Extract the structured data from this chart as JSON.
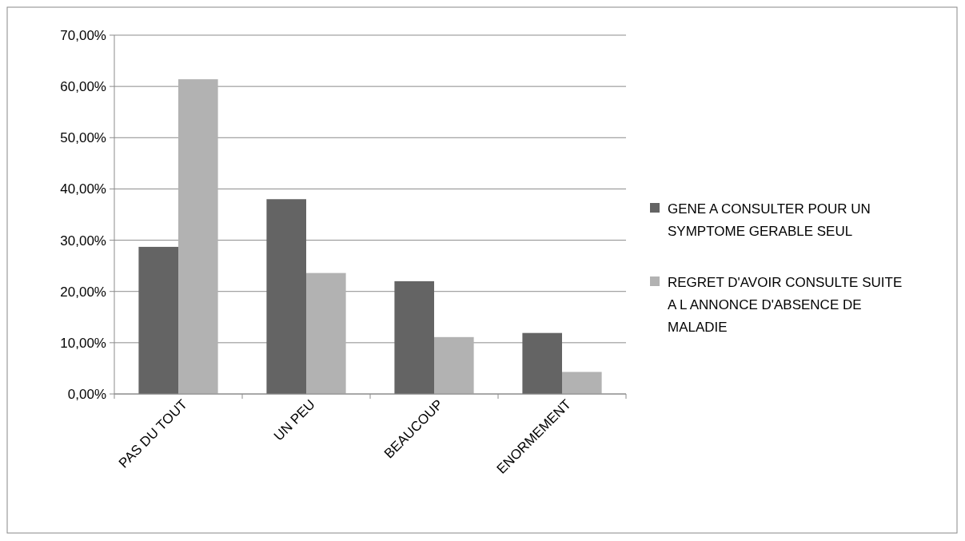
{
  "chart_data": {
    "type": "bar",
    "categories": [
      "PAS DU TOUT",
      "UN PEU",
      "BEAUCOUP",
      "ENORMEMENT"
    ],
    "series": [
      {
        "name": "GENE A CONSULTER POUR UN SYMPTOME GERABLE SEUL",
        "color": "#646464",
        "values": [
          28.7,
          38,
          22,
          11.9
        ]
      },
      {
        "name": "REGRET D'AVOIR CONSULTE SUITE A L ANNONCE D'ABSENCE DE MALADIE",
        "color": "#b2b2b2",
        "values": [
          61.4,
          23.6,
          11.1,
          4.3
        ]
      }
    ],
    "ylim": [
      0,
      70
    ],
    "yticks": [
      {
        "value": 0,
        "label": "0,00%"
      },
      {
        "value": 10,
        "label": "10,00%"
      },
      {
        "value": 20,
        "label": "20,00%"
      },
      {
        "value": 30,
        "label": "30,00%"
      },
      {
        "value": 40,
        "label": "40,00%"
      },
      {
        "value": 50,
        "label": "50,00%"
      },
      {
        "value": 60,
        "label": "60,00%"
      },
      {
        "value": 70,
        "label": "70,00%"
      }
    ],
    "grid": "y",
    "legend": "right"
  }
}
